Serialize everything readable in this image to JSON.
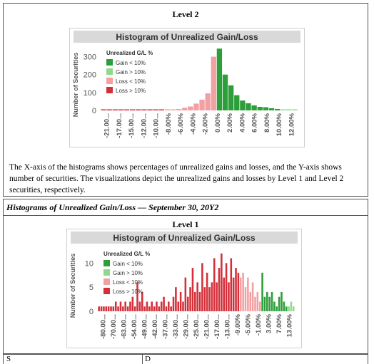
{
  "level2": {
    "heading": "Level 2",
    "caption": "The X-axis of the histograms shows percentages of unrealized gains and losses, and the Y-axis shows number of securities. The visualizations depict the unrealized gains and losses by Level 1 and Level 2 securities, respectively."
  },
  "section_title": "Histograms of Unrealized Gain/Loss — September 30, 20Y2",
  "level1": {
    "heading": "Level 1"
  },
  "footer": {
    "left": "S",
    "right": "D"
  },
  "colors": {
    "gain_lt_10": "#2e9e3a",
    "gain_gt_10": "#8fd98a",
    "loss_lt_10": "#f3a0a3",
    "loss_gt_10": "#d4303a",
    "title_band": "#d9d9d9",
    "axis_text": "#555555"
  },
  "chart_data": [
    {
      "type": "bar",
      "title": "Histogram of Unrealized Gain/Loss",
      "ylabel": "Number of Securities",
      "xlabel": "",
      "ylim": [
        0,
        350
      ],
      "yticks": [
        0,
        100,
        200,
        300
      ],
      "legend": {
        "title": "Unrealized G/L %",
        "placement": "top-left",
        "entries": [
          "Gain < 10%",
          "Gain > 10%",
          "Loss < 10%",
          "Loss > 10%"
        ]
      },
      "xtick_labels": [
        "-21.00...",
        "-17.00...",
        "-15.00...",
        "-12.00...",
        "-10.00...",
        "-8.00%",
        "-6.00%",
        "-4.00%",
        "-2.00%",
        "0.00%",
        "2.00%",
        "4.00%",
        "6.00%",
        "8.00%",
        "10.00%",
        "12.00%"
      ],
      "bins": [
        {
          "x": -22.0,
          "value": 1,
          "cat": "loss_gt_10"
        },
        {
          "x": -21.0,
          "value": 2,
          "cat": "loss_gt_10"
        },
        {
          "x": -20.0,
          "value": 1,
          "cat": "loss_gt_10"
        },
        {
          "x": -17.0,
          "value": 1,
          "cat": "loss_gt_10"
        },
        {
          "x": -16.0,
          "value": 1,
          "cat": "loss_gt_10"
        },
        {
          "x": -15.0,
          "value": 2,
          "cat": "loss_gt_10"
        },
        {
          "x": -14.0,
          "value": 1,
          "cat": "loss_gt_10"
        },
        {
          "x": -13.0,
          "value": 2,
          "cat": "loss_gt_10"
        },
        {
          "x": -12.0,
          "value": 2,
          "cat": "loss_gt_10"
        },
        {
          "x": -11.0,
          "value": 1,
          "cat": "loss_gt_10"
        },
        {
          "x": -10.0,
          "value": 2,
          "cat": "loss_gt_10"
        },
        {
          "x": -9.0,
          "value": 3,
          "cat": "loss_lt_10"
        },
        {
          "x": -8.0,
          "value": 5,
          "cat": "loss_lt_10"
        },
        {
          "x": -7.0,
          "value": 8,
          "cat": "loss_lt_10"
        },
        {
          "x": -6.0,
          "value": 15,
          "cat": "loss_lt_10"
        },
        {
          "x": -5.0,
          "value": 22,
          "cat": "loss_lt_10"
        },
        {
          "x": -4.0,
          "value": 38,
          "cat": "loss_lt_10"
        },
        {
          "x": -3.0,
          "value": 60,
          "cat": "loss_lt_10"
        },
        {
          "x": -2.0,
          "value": 95,
          "cat": "loss_lt_10"
        },
        {
          "x": -1.0,
          "value": 300,
          "cat": "loss_lt_10"
        },
        {
          "x": 0.0,
          "value": 345,
          "cat": "gain_lt_10"
        },
        {
          "x": 1.0,
          "value": 200,
          "cat": "gain_lt_10"
        },
        {
          "x": 2.0,
          "value": 140,
          "cat": "gain_lt_10"
        },
        {
          "x": 3.0,
          "value": 85,
          "cat": "gain_lt_10"
        },
        {
          "x": 4.0,
          "value": 55,
          "cat": "gain_lt_10"
        },
        {
          "x": 5.0,
          "value": 40,
          "cat": "gain_lt_10"
        },
        {
          "x": 6.0,
          "value": 28,
          "cat": "gain_lt_10"
        },
        {
          "x": 7.0,
          "value": 20,
          "cat": "gain_lt_10"
        },
        {
          "x": 8.0,
          "value": 18,
          "cat": "gain_lt_10"
        },
        {
          "x": 9.0,
          "value": 12,
          "cat": "gain_lt_10"
        },
        {
          "x": 10.0,
          "value": 8,
          "cat": "gain_lt_10"
        },
        {
          "x": 11.0,
          "value": 5,
          "cat": "gain_gt_10"
        },
        {
          "x": 12.0,
          "value": 3,
          "cat": "gain_gt_10"
        },
        {
          "x": 13.0,
          "value": 2,
          "cat": "gain_gt_10"
        }
      ]
    },
    {
      "type": "bar",
      "title": "Histogram of Unrealized Gain/Loss",
      "ylabel": "Number of Securities",
      "xlabel": "",
      "ylim": [
        0,
        13
      ],
      "yticks": [
        0,
        5,
        10
      ],
      "legend": {
        "title": "Unrealized G/L %",
        "placement": "top-left",
        "entries": [
          "Gain < 10%",
          "Gain > 10%",
          "Loss < 10%",
          "Loss > 10%"
        ]
      },
      "xtick_labels": [
        "-80.00...",
        "-70.00...",
        "-63.00...",
        "-54.00...",
        "-49.00...",
        "-42.00...",
        "-37.00...",
        "-33.00...",
        "-29.00...",
        "-25.00...",
        "-21.00...",
        "-17.00...",
        "-13.00...",
        "-9.00%",
        "-5.00%",
        "-1.00%",
        "3.00%",
        "7.00%",
        "13.00%"
      ],
      "bins": [
        {
          "x": -80,
          "value": 1,
          "cat": "loss_gt_10"
        },
        {
          "x": -78,
          "value": 1,
          "cat": "loss_gt_10"
        },
        {
          "x": -76,
          "value": 1,
          "cat": "loss_gt_10"
        },
        {
          "x": -74,
          "value": 1,
          "cat": "loss_gt_10"
        },
        {
          "x": -72,
          "value": 1,
          "cat": "loss_gt_10"
        },
        {
          "x": -70,
          "value": 1,
          "cat": "loss_gt_10"
        },
        {
          "x": -68,
          "value": 1,
          "cat": "loss_gt_10"
        },
        {
          "x": -66,
          "value": 2,
          "cat": "loss_gt_10"
        },
        {
          "x": -64,
          "value": 1,
          "cat": "loss_gt_10"
        },
        {
          "x": -63,
          "value": 2,
          "cat": "loss_gt_10"
        },
        {
          "x": -61,
          "value": 1,
          "cat": "loss_gt_10"
        },
        {
          "x": -59,
          "value": 2,
          "cat": "loss_gt_10"
        },
        {
          "x": -57,
          "value": 1,
          "cat": "loss_gt_10"
        },
        {
          "x": -55,
          "value": 2,
          "cat": "loss_gt_10"
        },
        {
          "x": -54,
          "value": 3,
          "cat": "loss_gt_10"
        },
        {
          "x": -53,
          "value": 1,
          "cat": "loss_gt_10"
        },
        {
          "x": -52,
          "value": 6,
          "cat": "loss_gt_10"
        },
        {
          "x": -51,
          "value": 2,
          "cat": "loss_gt_10"
        },
        {
          "x": -50,
          "value": 4,
          "cat": "loss_gt_10"
        },
        {
          "x": -49,
          "value": 1,
          "cat": "loss_gt_10"
        },
        {
          "x": -48,
          "value": 2,
          "cat": "loss_gt_10"
        },
        {
          "x": -47,
          "value": 1,
          "cat": "loss_gt_10"
        },
        {
          "x": -46,
          "value": 2,
          "cat": "loss_gt_10"
        },
        {
          "x": -45,
          "value": 1,
          "cat": "loss_gt_10"
        },
        {
          "x": -44,
          "value": 2,
          "cat": "loss_gt_10"
        },
        {
          "x": -43,
          "value": 1,
          "cat": "loss_gt_10"
        },
        {
          "x": -42,
          "value": 2,
          "cat": "loss_gt_10"
        },
        {
          "x": -41,
          "value": 3,
          "cat": "loss_gt_10"
        },
        {
          "x": -40,
          "value": 1,
          "cat": "loss_gt_10"
        },
        {
          "x": -39,
          "value": 2,
          "cat": "loss_gt_10"
        },
        {
          "x": -38,
          "value": 1,
          "cat": "loss_gt_10"
        },
        {
          "x": -37,
          "value": 3,
          "cat": "loss_gt_10"
        },
        {
          "x": -36,
          "value": 5,
          "cat": "loss_gt_10"
        },
        {
          "x": -35,
          "value": 2,
          "cat": "loss_gt_10"
        },
        {
          "x": -34,
          "value": 4,
          "cat": "loss_gt_10"
        },
        {
          "x": -33,
          "value": 2,
          "cat": "loss_gt_10"
        },
        {
          "x": -32,
          "value": 7,
          "cat": "loss_gt_10"
        },
        {
          "x": -31,
          "value": 3,
          "cat": "loss_gt_10"
        },
        {
          "x": -30,
          "value": 5,
          "cat": "loss_gt_10"
        },
        {
          "x": -29,
          "value": 9,
          "cat": "loss_gt_10"
        },
        {
          "x": -28,
          "value": 4,
          "cat": "loss_gt_10"
        },
        {
          "x": -27,
          "value": 6,
          "cat": "loss_gt_10"
        },
        {
          "x": -26,
          "value": 4,
          "cat": "loss_gt_10"
        },
        {
          "x": -25,
          "value": 10,
          "cat": "loss_gt_10"
        },
        {
          "x": -24,
          "value": 5,
          "cat": "loss_gt_10"
        },
        {
          "x": -23,
          "value": 8,
          "cat": "loss_gt_10"
        },
        {
          "x": -22,
          "value": 5,
          "cat": "loss_gt_10"
        },
        {
          "x": -21,
          "value": 6,
          "cat": "loss_gt_10"
        },
        {
          "x": -20,
          "value": 11,
          "cat": "loss_gt_10"
        },
        {
          "x": -19,
          "value": 6,
          "cat": "loss_gt_10"
        },
        {
          "x": -18,
          "value": 9,
          "cat": "loss_gt_10"
        },
        {
          "x": -17,
          "value": 12,
          "cat": "loss_gt_10"
        },
        {
          "x": -16,
          "value": 7,
          "cat": "loss_gt_10"
        },
        {
          "x": -15,
          "value": 10,
          "cat": "loss_gt_10"
        },
        {
          "x": -14,
          "value": 6,
          "cat": "loss_gt_10"
        },
        {
          "x": -13,
          "value": 11,
          "cat": "loss_gt_10"
        },
        {
          "x": -12,
          "value": 7,
          "cat": "loss_gt_10"
        },
        {
          "x": -11,
          "value": 9,
          "cat": "loss_gt_10"
        },
        {
          "x": -10,
          "value": 8,
          "cat": "loss_gt_10"
        },
        {
          "x": -9,
          "value": 7,
          "cat": "loss_lt_10"
        },
        {
          "x": -8,
          "value": 8,
          "cat": "loss_lt_10"
        },
        {
          "x": -7,
          "value": 5,
          "cat": "loss_lt_10"
        },
        {
          "x": -6,
          "value": 7,
          "cat": "loss_lt_10"
        },
        {
          "x": -5,
          "value": 4,
          "cat": "loss_lt_10"
        },
        {
          "x": -4,
          "value": 6,
          "cat": "loss_lt_10"
        },
        {
          "x": -3,
          "value": 3,
          "cat": "loss_lt_10"
        },
        {
          "x": -2,
          "value": 4,
          "cat": "loss_lt_10"
        },
        {
          "x": -1,
          "value": 2,
          "cat": "loss_lt_10"
        },
        {
          "x": 0,
          "value": 8,
          "cat": "gain_lt_10"
        },
        {
          "x": 1,
          "value": 3,
          "cat": "gain_lt_10"
        },
        {
          "x": 2,
          "value": 4,
          "cat": "gain_lt_10"
        },
        {
          "x": 3,
          "value": 3,
          "cat": "gain_lt_10"
        },
        {
          "x": 4,
          "value": 4,
          "cat": "gain_lt_10"
        },
        {
          "x": 5,
          "value": 2,
          "cat": "gain_lt_10"
        },
        {
          "x": 6,
          "value": 1,
          "cat": "gain_lt_10"
        },
        {
          "x": 7,
          "value": 3,
          "cat": "gain_lt_10"
        },
        {
          "x": 8,
          "value": 4,
          "cat": "gain_lt_10"
        },
        {
          "x": 9,
          "value": 2,
          "cat": "gain_lt_10"
        },
        {
          "x": 10,
          "value": 1,
          "cat": "gain_lt_10"
        },
        {
          "x": 11,
          "value": 1,
          "cat": "gain_gt_10"
        },
        {
          "x": 12,
          "value": 2,
          "cat": "gain_gt_10"
        },
        {
          "x": 13,
          "value": 1,
          "cat": "gain_gt_10"
        }
      ]
    }
  ]
}
